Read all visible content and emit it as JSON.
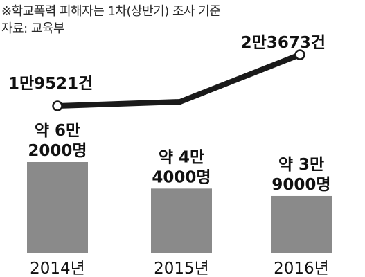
{
  "header": {
    "note": "※학교폭력 피해자는 1차(상반기) 조사 기준",
    "source": "자료: 교육부"
  },
  "chart_data": {
    "type": "bar",
    "categories": [
      "2014년",
      "2015년",
      "2016년"
    ],
    "series": [
      {
        "values": [
          62000,
          44000,
          39000
        ],
        "labels": [
          [
            "약 6만",
            "2000명"
          ],
          [
            "약 4만",
            "4000명"
          ],
          [
            "약 3만",
            "9000명"
          ]
        ],
        "color": "#8a8a8a"
      },
      {
        "type": "line",
        "values": [
          19521,
          null,
          23673
        ],
        "labels": [
          "1만9521건",
          "",
          "2만3673건"
        ],
        "color": "#1a1a1a"
      }
    ]
  }
}
